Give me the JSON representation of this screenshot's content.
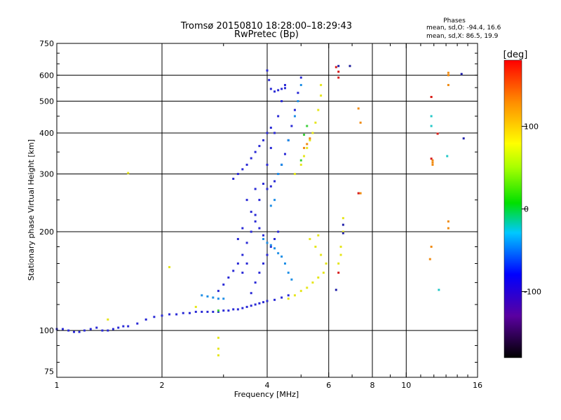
{
  "chart_data": {
    "type": "scatter",
    "title": "Tromsø 20150810 18:28:00–18:29:43",
    "subtitle": "RwPretec (Bp)",
    "xlabel": "Frequency [MHz]",
    "ylabel": "Stationary phase Virtual Height [km]",
    "x_scale": "log",
    "y_scale": "log",
    "xlim": [
      1,
      16
    ],
    "ylim": [
      72,
      750
    ],
    "x_ticks": [
      1,
      2,
      4,
      6,
      8,
      10,
      16
    ],
    "x_tick_labels": [
      "1",
      "2",
      "4",
      "6",
      "8",
      "10",
      "16"
    ],
    "x_gridlines": [
      2,
      4,
      6,
      8,
      10
    ],
    "y_ticks": [
      75,
      100,
      200,
      300,
      400,
      500,
      600,
      750
    ],
    "y_tick_labels": [
      "75",
      "100",
      "200",
      "300",
      "400",
      "500",
      "600",
      "750"
    ],
    "y_gridlines": [
      100,
      200,
      300,
      400,
      500,
      600
    ],
    "grid": true,
    "info": {
      "heading": "Phases",
      "line1": "mean, sd,O: -94.4, 16.6",
      "line2": "mean, sd,X:  86.5, 19.9"
    },
    "colorbar": {
      "label": "[deg]",
      "range": [
        -180,
        180
      ],
      "ticks": [
        100,
        0,
        -100
      ],
      "tick_labels": [
        "100",
        "0",
        "-100"
      ]
    },
    "series": [
      {
        "phase_deg": -94,
        "color": "#2a2ad6",
        "points": [
          [
            1.0,
            101
          ],
          [
            1.04,
            101
          ],
          [
            1.08,
            100
          ],
          [
            1.12,
            99
          ],
          [
            1.16,
            99
          ],
          [
            1.2,
            100
          ],
          [
            1.25,
            101
          ],
          [
            1.3,
            102
          ],
          [
            1.35,
            100
          ],
          [
            1.4,
            100
          ],
          [
            1.45,
            101
          ],
          [
            1.5,
            102
          ],
          [
            1.55,
            103
          ],
          [
            1.6,
            103
          ],
          [
            1.7,
            105
          ],
          [
            1.8,
            108
          ],
          [
            1.9,
            110
          ],
          [
            2.0,
            111
          ],
          [
            2.1,
            112
          ],
          [
            2.2,
            112
          ],
          [
            2.3,
            113
          ],
          [
            2.4,
            113
          ],
          [
            2.5,
            114
          ],
          [
            2.6,
            114
          ],
          [
            2.7,
            114
          ],
          [
            2.8,
            114
          ],
          [
            2.9,
            114
          ],
          [
            3.0,
            115
          ],
          [
            3.1,
            115
          ],
          [
            3.2,
            116
          ],
          [
            3.3,
            116
          ],
          [
            3.4,
            117
          ],
          [
            3.5,
            118
          ],
          [
            3.6,
            119
          ],
          [
            3.7,
            120
          ],
          [
            3.8,
            121
          ],
          [
            3.9,
            122
          ],
          [
            4.0,
            123
          ],
          [
            4.2,
            124
          ],
          [
            4.4,
            126
          ],
          [
            4.6,
            128
          ],
          [
            2.9,
            132
          ],
          [
            3.0,
            138
          ],
          [
            3.1,
            145
          ],
          [
            3.2,
            152
          ],
          [
            3.3,
            160
          ],
          [
            3.4,
            170
          ],
          [
            3.5,
            185
          ],
          [
            3.6,
            200
          ],
          [
            3.7,
            225
          ],
          [
            3.8,
            250
          ],
          [
            3.9,
            280
          ],
          [
            4.0,
            320
          ],
          [
            4.1,
            360
          ],
          [
            4.2,
            400
          ],
          [
            4.3,
            450
          ],
          [
            4.4,
            500
          ],
          [
            4.5,
            560
          ],
          [
            3.2,
            290
          ],
          [
            3.3,
            300
          ],
          [
            3.4,
            310
          ],
          [
            3.5,
            320
          ],
          [
            3.6,
            335
          ],
          [
            3.7,
            350
          ],
          [
            3.8,
            365
          ],
          [
            3.9,
            380
          ],
          [
            4.0,
            400
          ],
          [
            4.1,
            415
          ],
          [
            3.6,
            130
          ],
          [
            3.7,
            140
          ],
          [
            3.8,
            150
          ],
          [
            3.9,
            160
          ],
          [
            4.0,
            170
          ],
          [
            4.1,
            180
          ],
          [
            4.2,
            190
          ],
          [
            4.3,
            200
          ],
          [
            4.0,
            270
          ],
          [
            4.1,
            275
          ],
          [
            4.2,
            285
          ],
          [
            4.3,
            300
          ],
          [
            4.4,
            320
          ],
          [
            4.5,
            345
          ],
          [
            4.6,
            380
          ],
          [
            4.7,
            420
          ],
          [
            4.8,
            470
          ],
          [
            4.9,
            530
          ],
          [
            5.0,
            590
          ],
          [
            4.0,
            620
          ],
          [
            4.05,
            580
          ],
          [
            4.1,
            545
          ],
          [
            4.2,
            535
          ],
          [
            4.3,
            540
          ],
          [
            4.4,
            545
          ],
          [
            4.5,
            548
          ],
          [
            3.5,
            250
          ],
          [
            3.6,
            230
          ],
          [
            3.7,
            215
          ],
          [
            3.8,
            205
          ],
          [
            3.9,
            195
          ],
          [
            3.4,
            205
          ],
          [
            3.3,
            190
          ],
          [
            3.5,
            160
          ],
          [
            3.4,
            150
          ],
          [
            3.7,
            270
          ]
        ]
      },
      {
        "phase_deg": -60,
        "color": "#1f8fe6",
        "points": [
          [
            2.6,
            128
          ],
          [
            2.7,
            127
          ],
          [
            2.8,
            126
          ],
          [
            2.9,
            125
          ],
          [
            3.0,
            125
          ],
          [
            3.9,
            190
          ],
          [
            4.0,
            185
          ],
          [
            4.1,
            182
          ],
          [
            4.2,
            178
          ],
          [
            4.3,
            172
          ],
          [
            4.4,
            168
          ],
          [
            4.5,
            160
          ],
          [
            4.6,
            150
          ],
          [
            4.7,
            143
          ],
          [
            4.1,
            240
          ],
          [
            4.2,
            250
          ],
          [
            4.3,
            300
          ],
          [
            4.4,
            320
          ],
          [
            4.6,
            380
          ],
          [
            4.8,
            450
          ],
          [
            4.9,
            500
          ],
          [
            5.0,
            560
          ]
        ]
      },
      {
        "phase_deg": 20,
        "color": "#3acf3a",
        "points": [
          [
            2.9,
            115
          ],
          [
            4.8,
            300
          ],
          [
            5.0,
            330
          ],
          [
            5.1,
            395
          ],
          [
            5.2,
            420
          ]
        ]
      },
      {
        "phase_deg": 90,
        "color": "#e6e61c",
        "points": [
          [
            4.6,
            125
          ],
          [
            4.8,
            128
          ],
          [
            5.0,
            132
          ],
          [
            5.2,
            135
          ],
          [
            5.4,
            140
          ],
          [
            5.6,
            145
          ],
          [
            5.8,
            150
          ],
          [
            5.9,
            160
          ],
          [
            5.7,
            170
          ],
          [
            5.5,
            180
          ],
          [
            5.3,
            190
          ],
          [
            5.6,
            195
          ],
          [
            4.8,
            300
          ],
          [
            5.0,
            320
          ],
          [
            5.1,
            340
          ],
          [
            5.2,
            360
          ],
          [
            5.3,
            380
          ],
          [
            5.4,
            400
          ],
          [
            5.5,
            430
          ],
          [
            5.6,
            470
          ],
          [
            5.7,
            520
          ],
          [
            5.7,
            560
          ],
          [
            6.4,
            160
          ],
          [
            6.5,
            170
          ],
          [
            6.5,
            180
          ],
          [
            6.6,
            200
          ],
          [
            6.6,
            220
          ],
          [
            6.9,
            640
          ],
          [
            2.9,
            95
          ],
          [
            2.9,
            88
          ],
          [
            2.9,
            84
          ],
          [
            1.6,
            302
          ],
          [
            2.1,
            156
          ],
          [
            1.4,
            108
          ],
          [
            2.5,
            118
          ]
        ]
      },
      {
        "phase_deg": 140,
        "color": "#f08a10",
        "points": [
          [
            5.1,
            360
          ],
          [
            5.2,
            370
          ],
          [
            5.3,
            385
          ],
          [
            7.3,
            475
          ],
          [
            7.4,
            430
          ],
          [
            7.4,
            262
          ],
          [
            11.8,
            515
          ],
          [
            12.3,
            398
          ],
          [
            11.9,
            330
          ],
          [
            11.9,
            325
          ],
          [
            11.9,
            320
          ],
          [
            13.2,
            610
          ],
          [
            13.2,
            600
          ],
          [
            13.2,
            560
          ],
          [
            13.2,
            205
          ],
          [
            13.2,
            215
          ],
          [
            11.7,
            165
          ],
          [
            11.8,
            180
          ]
        ]
      },
      {
        "phase_deg": 175,
        "color": "#d81c1c",
        "points": [
          [
            6.4,
            590
          ],
          [
            6.4,
            615
          ],
          [
            6.3,
            635
          ],
          [
            7.3,
            262
          ],
          [
            11.8,
            515
          ],
          [
            11.8,
            334
          ],
          [
            12.3,
            398
          ],
          [
            6.4,
            150
          ]
        ]
      },
      {
        "phase_deg": 50,
        "color": "#22c8c8",
        "points": [
          [
            11.8,
            420
          ],
          [
            12.4,
            133
          ],
          [
            13.1,
            340
          ],
          [
            11.8,
            450
          ]
        ]
      },
      {
        "phase_deg": -110,
        "color": "#2222aa",
        "points": [
          [
            14.4,
            605
          ],
          [
            14.6,
            385
          ],
          [
            6.6,
            210
          ],
          [
            6.6,
            198
          ],
          [
            6.3,
            133
          ],
          [
            6.4,
            640
          ],
          [
            6.9,
            640
          ]
        ]
      }
    ]
  }
}
